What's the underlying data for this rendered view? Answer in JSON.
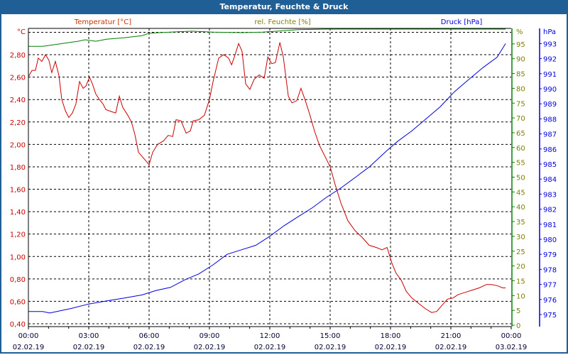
{
  "window": {
    "title": "Temperatur, Feuchte & Druck"
  },
  "colors": {
    "temperature": "#cc0000",
    "humidity": "#008000",
    "pressure": "#0000dd",
    "titlebar": "#1f5f96",
    "temp_label": "#cc3300",
    "hum_label": "#808000"
  },
  "chart_data": {
    "type": "line",
    "title": "Temperatur, Feuchte & Druck",
    "xlabel": "",
    "x_unit": "hours since 02.02.19 00:00",
    "xlim": [
      0,
      24
    ],
    "x_ticks": [
      {
        "time": "00:00",
        "date": "02.02.19"
      },
      {
        "time": "03:00",
        "date": "02.02.19"
      },
      {
        "time": "06:00",
        "date": "02.02.19"
      },
      {
        "time": "09:00",
        "date": "02.02.19"
      },
      {
        "time": "12:00",
        "date": "02.02.19"
      },
      {
        "time": "15:00",
        "date": "02.02.19"
      },
      {
        "time": "18:00",
        "date": "02.02.19"
      },
      {
        "time": "21:00",
        "date": "02.02.19"
      },
      {
        "time": "00:00",
        "date": "03.02.19"
      }
    ],
    "grid": true,
    "axes": {
      "temperature": {
        "label": "Temperatur [°C]",
        "unit": "°C",
        "ylim": [
          0.4,
          3.0
        ],
        "ticks": [
          "0,40",
          "0,60",
          "0,80",
          "1,00",
          "1,20",
          "1,40",
          "1,60",
          "1,80",
          "2,00",
          "2,20",
          "2,40",
          "2,60",
          "2,80"
        ]
      },
      "humidity": {
        "label": "rel. Feuchte [%]",
        "unit": "%",
        "ylim": [
          0,
          100
        ],
        "ticks": [
          "0",
          "5",
          "10",
          "15",
          "20",
          "25",
          "30",
          "35",
          "40",
          "45",
          "50",
          "55",
          "60",
          "65",
          "70",
          "75",
          "80",
          "85",
          "90",
          "95"
        ]
      },
      "pressure": {
        "label": "Druck [hPa]",
        "unit": "hPa",
        "ylim": [
          974.05,
          993.7
        ],
        "ticks": [
          "975",
          "976",
          "977",
          "978",
          "979",
          "980",
          "981",
          "982",
          "983",
          "984",
          "985",
          "986",
          "987",
          "988",
          "989",
          "990",
          "991",
          "992",
          "993"
        ]
      }
    },
    "series": [
      {
        "name": "Temperatur [°C]",
        "axis": "temperature",
        "points": [
          [
            0.02,
            2.61
          ],
          [
            0.18,
            2.66
          ],
          [
            0.35,
            2.66
          ],
          [
            0.49,
            2.77
          ],
          [
            0.67,
            2.74
          ],
          [
            0.85,
            2.8
          ],
          [
            1.02,
            2.75
          ],
          [
            1.16,
            2.64
          ],
          [
            1.34,
            2.74
          ],
          [
            1.52,
            2.61
          ],
          [
            1.66,
            2.4
          ],
          [
            1.84,
            2.3
          ],
          [
            2.01,
            2.24
          ],
          [
            2.19,
            2.28
          ],
          [
            2.36,
            2.36
          ],
          [
            2.54,
            2.56
          ],
          [
            2.72,
            2.5
          ],
          [
            2.86,
            2.52
          ],
          [
            3.04,
            2.6
          ],
          [
            3.18,
            2.54
          ],
          [
            3.35,
            2.45
          ],
          [
            3.53,
            2.4
          ],
          [
            3.71,
            2.36
          ],
          [
            3.85,
            2.31
          ],
          [
            4.17,
            2.29
          ],
          [
            4.34,
            2.28
          ],
          [
            4.52,
            2.43
          ],
          [
            4.69,
            2.33
          ],
          [
            4.94,
            2.26
          ],
          [
            5.12,
            2.2
          ],
          [
            5.29,
            2.09
          ],
          [
            5.47,
            1.93
          ],
          [
            5.61,
            1.9
          ],
          [
            6.0,
            1.82
          ],
          [
            6.18,
            1.93
          ],
          [
            6.42,
            2.0
          ],
          [
            6.71,
            2.03
          ],
          [
            6.95,
            2.08
          ],
          [
            7.17,
            2.07
          ],
          [
            7.34,
            2.22
          ],
          [
            7.59,
            2.21
          ],
          [
            7.84,
            2.1
          ],
          [
            8.05,
            2.12
          ],
          [
            8.19,
            2.21
          ],
          [
            8.47,
            2.22
          ],
          [
            8.75,
            2.26
          ],
          [
            9.0,
            2.4
          ],
          [
            9.18,
            2.56
          ],
          [
            9.46,
            2.77
          ],
          [
            9.71,
            2.8
          ],
          [
            9.95,
            2.77
          ],
          [
            10.1,
            2.71
          ],
          [
            10.24,
            2.78
          ],
          [
            10.45,
            2.9
          ],
          [
            10.62,
            2.83
          ],
          [
            10.8,
            2.54
          ],
          [
            11.01,
            2.49
          ],
          [
            11.22,
            2.58
          ],
          [
            11.47,
            2.62
          ],
          [
            11.72,
            2.59
          ],
          [
            11.9,
            2.78
          ],
          [
            12.1,
            2.72
          ],
          [
            12.28,
            2.73
          ],
          [
            12.5,
            2.91
          ],
          [
            12.67,
            2.78
          ],
          [
            12.92,
            2.43
          ],
          [
            13.1,
            2.37
          ],
          [
            13.34,
            2.39
          ],
          [
            13.55,
            2.5
          ],
          [
            13.77,
            2.39
          ],
          [
            13.98,
            2.27
          ],
          [
            14.22,
            2.12
          ],
          [
            14.47,
            1.99
          ],
          [
            14.75,
            1.89
          ],
          [
            15.0,
            1.8
          ],
          [
            15.25,
            1.64
          ],
          [
            15.53,
            1.48
          ],
          [
            15.88,
            1.32
          ],
          [
            16.24,
            1.23
          ],
          [
            16.59,
            1.17
          ],
          [
            16.94,
            1.1
          ],
          [
            17.3,
            1.08
          ],
          [
            17.58,
            1.06
          ],
          [
            17.83,
            1.08
          ],
          [
            18.07,
            0.94
          ],
          [
            18.28,
            0.85
          ],
          [
            18.53,
            0.79
          ],
          [
            18.78,
            0.69
          ],
          [
            19.06,
            0.63
          ],
          [
            19.41,
            0.58
          ],
          [
            19.77,
            0.53
          ],
          [
            20.05,
            0.5
          ],
          [
            20.3,
            0.51
          ],
          [
            20.54,
            0.56
          ],
          [
            20.83,
            0.62
          ],
          [
            21.11,
            0.63
          ],
          [
            21.36,
            0.66
          ],
          [
            21.71,
            0.68
          ],
          [
            22.06,
            0.7
          ],
          [
            22.41,
            0.72
          ],
          [
            22.77,
            0.75
          ],
          [
            23.01,
            0.75
          ],
          [
            23.3,
            0.74
          ],
          [
            23.58,
            0.72
          ],
          [
            23.72,
            0.72
          ]
        ]
      },
      {
        "name": "rel. Feuchte [%]",
        "axis": "humidity",
        "points": [
          [
            0,
            94.2
          ],
          [
            0.71,
            94.2
          ],
          [
            1.24,
            94.7
          ],
          [
            1.94,
            95.4
          ],
          [
            2.47,
            95.9
          ],
          [
            2.82,
            96.4
          ],
          [
            3.35,
            95.9
          ],
          [
            3.88,
            96.6
          ],
          [
            4.77,
            97.1
          ],
          [
            5.65,
            97.8
          ],
          [
            6.0,
            98.6
          ],
          [
            7.06,
            99.0
          ],
          [
            8.12,
            99.3
          ],
          [
            9.18,
            99.0
          ],
          [
            10.59,
            98.8
          ],
          [
            11.65,
            99.0
          ],
          [
            13.41,
            99.8
          ],
          [
            14.83,
            100
          ],
          [
            23.72,
            100
          ]
        ]
      },
      {
        "name": "Druck [hPa]",
        "axis": "pressure",
        "points": [
          [
            0,
            975.2
          ],
          [
            0.71,
            975.2
          ],
          [
            1.06,
            975.1
          ],
          [
            1.41,
            975.2
          ],
          [
            2.12,
            975.4
          ],
          [
            3.0,
            975.7
          ],
          [
            3.88,
            975.9
          ],
          [
            4.77,
            976.1
          ],
          [
            5.65,
            976.3
          ],
          [
            6.35,
            976.6
          ],
          [
            7.06,
            976.8
          ],
          [
            7.77,
            977.3
          ],
          [
            8.47,
            977.7
          ],
          [
            9.18,
            978.3
          ],
          [
            9.88,
            979.0
          ],
          [
            10.59,
            979.3
          ],
          [
            11.3,
            979.6
          ],
          [
            12.0,
            980.2
          ],
          [
            12.71,
            980.9
          ],
          [
            13.41,
            981.5
          ],
          [
            14.12,
            982.1
          ],
          [
            14.83,
            982.8
          ],
          [
            15.53,
            983.4
          ],
          [
            16.24,
            984.1
          ],
          [
            16.94,
            984.8
          ],
          [
            17.83,
            985.9
          ],
          [
            18.35,
            986.5
          ],
          [
            19.06,
            987.2
          ],
          [
            19.77,
            988.0
          ],
          [
            20.47,
            988.8
          ],
          [
            21.18,
            989.8
          ],
          [
            21.88,
            990.6
          ],
          [
            22.59,
            991.4
          ],
          [
            23.3,
            992.1
          ],
          [
            23.72,
            993.0
          ]
        ]
      }
    ]
  }
}
